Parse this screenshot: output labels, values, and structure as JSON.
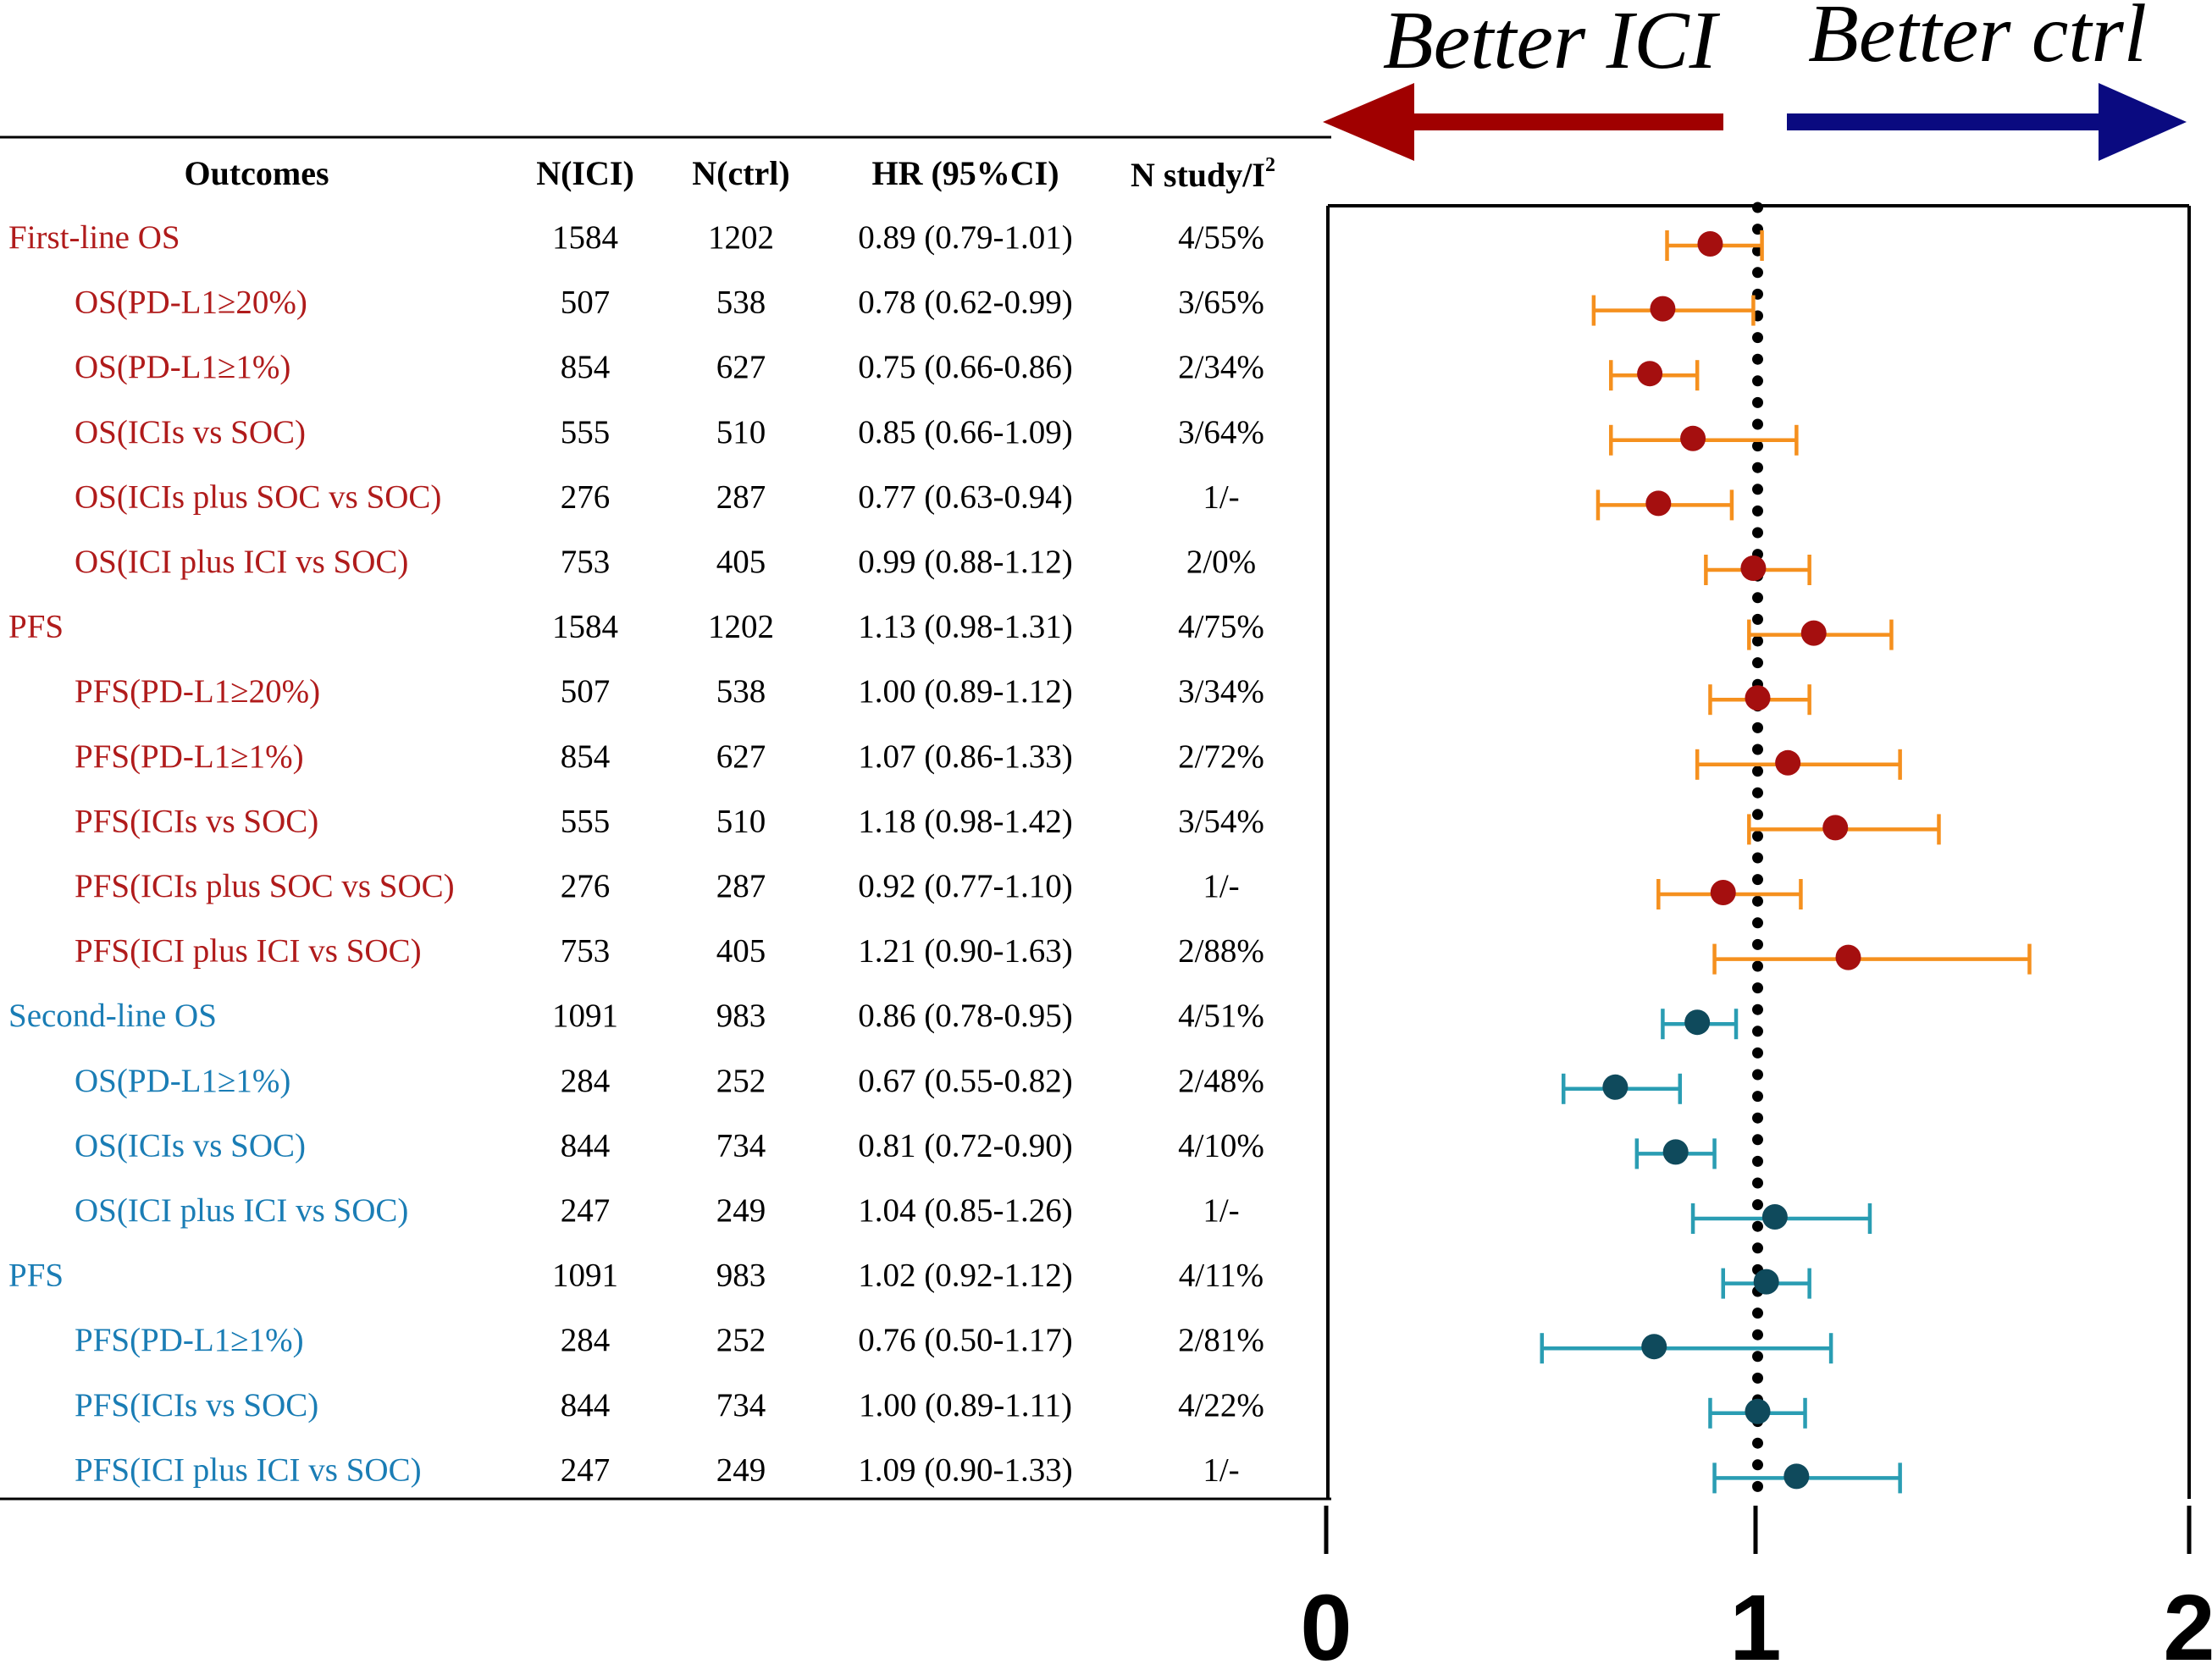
{
  "chart_data": {
    "type": "forest",
    "columns": {
      "outcomes": "Outcomes",
      "n_ici": "N(ICI)",
      "n_ctrl": "N(ctrl)",
      "hr": "HR (95%CI)",
      "n_study": "N study/I",
      "n_study_sup": "2"
    },
    "direction_left": "Better ICI",
    "direction_right": "Better ctrl",
    "x_ticks": [
      "0",
      "1",
      "2"
    ],
    "xlim": [
      0,
      2
    ],
    "reference_line": 1,
    "colors": {
      "group_first_line": "#b01b1b",
      "group_second_line": "#1a7db5",
      "point_first_line": "#a50f0f",
      "ci_first_line": "#f5901e",
      "point_second_line": "#0f4a5c",
      "ci_second_line": "#2a9db3",
      "arrow_left": "#a00000",
      "arrow_right": "#0a0a80"
    },
    "rows": [
      {
        "label": "First-line OS",
        "group": "first",
        "indent": false,
        "n_ici": "1584",
        "n_ctrl": "1202",
        "hr_text": "0.89 (0.79-1.01)",
        "study": "4/55%",
        "hr": 0.89,
        "lo": 0.79,
        "hi": 1.01
      },
      {
        "label": "OS(PD-L1≥20%)",
        "group": "first",
        "indent": true,
        "n_ici": "507",
        "n_ctrl": "538",
        "hr_text": "0.78 (0.62-0.99)",
        "study": "3/65%",
        "hr": 0.78,
        "lo": 0.62,
        "hi": 0.99
      },
      {
        "label": "OS(PD-L1≥1%)",
        "group": "first",
        "indent": true,
        "n_ici": "854",
        "n_ctrl": "627",
        "hr_text": "0.75 (0.66-0.86)",
        "study": "2/34%",
        "hr": 0.75,
        "lo": 0.66,
        "hi": 0.86
      },
      {
        "label": "OS(ICIs vs SOC)",
        "group": "first",
        "indent": true,
        "n_ici": "555",
        "n_ctrl": "510",
        "hr_text": "0.85 (0.66-1.09)",
        "study": "3/64%",
        "hr": 0.85,
        "lo": 0.66,
        "hi": 1.09
      },
      {
        "label": "OS(ICIs plus SOC vs SOC)",
        "group": "first",
        "indent": true,
        "n_ici": "276",
        "n_ctrl": "287",
        "hr_text": "0.77 (0.63-0.94)",
        "study": "1/-",
        "hr": 0.77,
        "lo": 0.63,
        "hi": 0.94
      },
      {
        "label": "OS(ICI plus ICI vs SOC)",
        "group": "first",
        "indent": true,
        "n_ici": "753",
        "n_ctrl": "405",
        "hr_text": "0.99 (0.88-1.12)",
        "study": "2/0%",
        "hr": 0.99,
        "lo": 0.88,
        "hi": 1.12
      },
      {
        "label": "PFS",
        "group": "first",
        "indent": false,
        "n_ici": "1584",
        "n_ctrl": "1202",
        "hr_text": "1.13 (0.98-1.31)",
        "study": "4/75%",
        "hr": 1.13,
        "lo": 0.98,
        "hi": 1.31
      },
      {
        "label": "PFS(PD-L1≥20%)",
        "group": "first",
        "indent": true,
        "n_ici": "507",
        "n_ctrl": "538",
        "hr_text": "1.00 (0.89-1.12)",
        "study": "3/34%",
        "hr": 1.0,
        "lo": 0.89,
        "hi": 1.12
      },
      {
        "label": "PFS(PD-L1≥1%)",
        "group": "first",
        "indent": true,
        "n_ici": "854",
        "n_ctrl": "627",
        "hr_text": "1.07 (0.86-1.33)",
        "study": "2/72%",
        "hr": 1.07,
        "lo": 0.86,
        "hi": 1.33
      },
      {
        "label": "PFS(ICIs vs SOC)",
        "group": "first",
        "indent": true,
        "n_ici": "555",
        "n_ctrl": "510",
        "hr_text": "1.18 (0.98-1.42)",
        "study": "3/54%",
        "hr": 1.18,
        "lo": 0.98,
        "hi": 1.42
      },
      {
        "label": "PFS(ICIs plus SOC vs SOC)",
        "group": "first",
        "indent": true,
        "n_ici": "276",
        "n_ctrl": "287",
        "hr_text": "0.92 (0.77-1.10)",
        "study": "1/-",
        "hr": 0.92,
        "lo": 0.77,
        "hi": 1.1
      },
      {
        "label": "PFS(ICI plus ICI vs SOC)",
        "group": "first",
        "indent": true,
        "n_ici": "753",
        "n_ctrl": "405",
        "hr_text": "1.21 (0.90-1.63)",
        "study": "2/88%",
        "hr": 1.21,
        "lo": 0.9,
        "hi": 1.63
      },
      {
        "label": "Second-line OS",
        "group": "second",
        "indent": false,
        "n_ici": "1091",
        "n_ctrl": "983",
        "hr_text": "0.86 (0.78-0.95)",
        "study": "4/51%",
        "hr": 0.86,
        "lo": 0.78,
        "hi": 0.95
      },
      {
        "label": "OS(PD-L1≥1%)",
        "group": "second",
        "indent": true,
        "n_ici": "284",
        "n_ctrl": "252",
        "hr_text": "0.67 (0.55-0.82)",
        "study": "2/48%",
        "hr": 0.67,
        "lo": 0.55,
        "hi": 0.82
      },
      {
        "label": "OS(ICIs vs SOC)",
        "group": "second",
        "indent": true,
        "n_ici": "844",
        "n_ctrl": "734",
        "hr_text": "0.81 (0.72-0.90)",
        "study": "4/10%",
        "hr": 0.81,
        "lo": 0.72,
        "hi": 0.9
      },
      {
        "label": "OS(ICI plus ICI vs SOC)",
        "group": "second",
        "indent": true,
        "n_ici": "247",
        "n_ctrl": "249",
        "hr_text": "1.04 (0.85-1.26)",
        "study": "1/-",
        "hr": 1.04,
        "lo": 0.85,
        "hi": 1.26
      },
      {
        "label": "PFS",
        "group": "second",
        "indent": false,
        "n_ici": "1091",
        "n_ctrl": "983",
        "hr_text": "1.02 (0.92-1.12)",
        "study": "4/11%",
        "hr": 1.02,
        "lo": 0.92,
        "hi": 1.12
      },
      {
        "label": "PFS(PD-L1≥1%)",
        "group": "second",
        "indent": true,
        "n_ici": "284",
        "n_ctrl": "252",
        "hr_text": "0.76 (0.50-1.17)",
        "study": "2/81%",
        "hr": 0.76,
        "lo": 0.5,
        "hi": 1.17
      },
      {
        "label": "PFS(ICIs vs SOC)",
        "group": "second",
        "indent": true,
        "n_ici": "844",
        "n_ctrl": "734",
        "hr_text": "1.00 (0.89-1.11)",
        "study": "4/22%",
        "hr": 1.0,
        "lo": 0.89,
        "hi": 1.11
      },
      {
        "label": "PFS(ICI plus ICI vs SOC)",
        "group": "second",
        "indent": true,
        "n_ici": "247",
        "n_ctrl": "249",
        "hr_text": "1.09 (0.90-1.33)",
        "study": "1/-",
        "hr": 1.09,
        "lo": 0.9,
        "hi": 1.33
      }
    ]
  }
}
